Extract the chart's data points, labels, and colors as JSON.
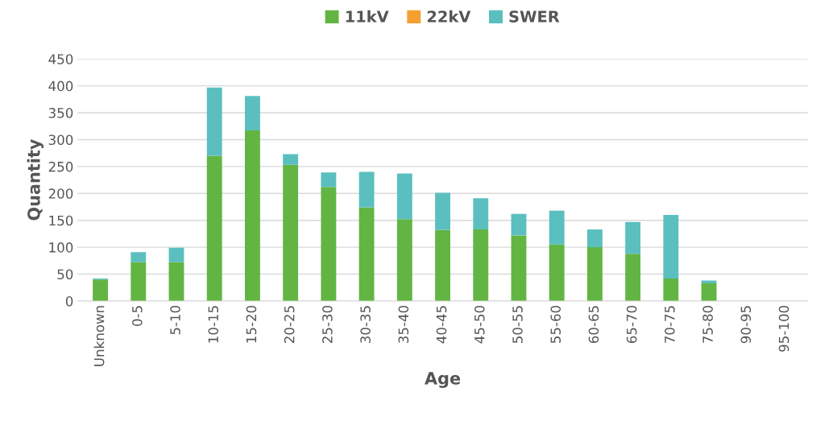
{
  "chart_data": {
    "type": "bar",
    "stacked": true,
    "xlabel": "Age",
    "ylabel": "Quantity",
    "categories": [
      "Unknown",
      "0-5",
      "5-10",
      "10-15",
      "15-20",
      "20-25",
      "25-30",
      "30-35",
      "35-40",
      "40-45",
      "45-50",
      "50-55",
      "55-60",
      "60-65",
      "65-70",
      "70-75",
      "75-80",
      "90-95",
      "95-100"
    ],
    "series": [
      {
        "name": "11kV",
        "color": "#62b543",
        "values": [
          40,
          72,
          72,
          270,
          317,
          253,
          212,
          174,
          152,
          132,
          133,
          122,
          105,
          100,
          88,
          42,
          33,
          0,
          0
        ]
      },
      {
        "name": "22kV",
        "color": "#f4a030",
        "values": [
          0,
          0,
          0,
          0,
          0,
          0,
          0,
          0,
          0,
          0,
          0,
          0,
          0,
          0,
          0,
          0,
          0,
          0,
          0
        ]
      },
      {
        "name": "SWER",
        "color": "#5bbfbf",
        "values": [
          2,
          19,
          27,
          127,
          64,
          20,
          27,
          66,
          85,
          69,
          58,
          40,
          63,
          33,
          59,
          118,
          5,
          0,
          0
        ]
      }
    ],
    "ylim": [
      0,
      450
    ],
    "yticks": [
      0,
      50,
      100,
      150,
      200,
      250,
      300,
      350,
      400,
      450
    ],
    "grid": "y",
    "legend": "top"
  }
}
